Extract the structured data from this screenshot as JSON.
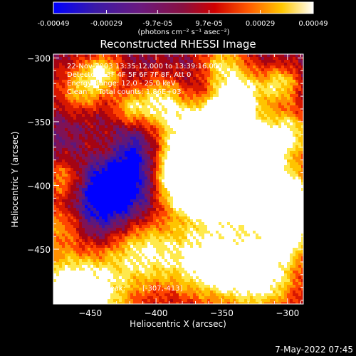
{
  "colorbar": {
    "tick_labels": [
      "-0.00049",
      "-0.00029",
      "-9.7e-05",
      "9.7e-05",
      "0.00029",
      "0.00049"
    ],
    "tick_values": [
      -0.00049,
      -0.00029,
      -9.7e-05,
      9.7e-05,
      0.00029,
      0.00049
    ],
    "range": [
      -0.00049,
      0.00049
    ],
    "units": "(photons cm⁻² s⁻¹ asec⁻²)"
  },
  "chart_data": {
    "type": "heatmap",
    "title": "Reconstructed RHESSI Image",
    "xlabel": "Heliocentric X (arcsec)",
    "ylabel": "Heliocentric Y (arcsec)",
    "xlim": [
      -478,
      -288
    ],
    "ylim": [
      -493,
      -297
    ],
    "x_ticks": [
      -450,
      -400,
      -350,
      -300
    ],
    "x_tick_labels": [
      "−450",
      "−400",
      "−350",
      "−300"
    ],
    "y_ticks": [
      -450,
      -400,
      -350,
      -300
    ],
    "y_tick_labels": [
      "−450",
      "−400",
      "−350",
      "−300"
    ],
    "annotations": [
      "22-Nov-2003 13:35:12.000 to 13:39:16.000",
      "Detectors: 3F 4F 5F 6F 7F 8F, Att 0",
      "Energy Range: 12.0 - 25.0 keV",
      "Clean     Total counts: 1.86E+03"
    ],
    "peak_label": "Position of Peak:",
    "peak_value": "[-307,-413]",
    "colormap": [
      "#0000ff",
      "#4b1b8c",
      "#7a1460",
      "#b00000",
      "#ff3000",
      "#ff9b00",
      "#ffe000",
      "#ffffff"
    ]
  },
  "footer": {
    "timestamp": "7-May-2022 07:45"
  }
}
